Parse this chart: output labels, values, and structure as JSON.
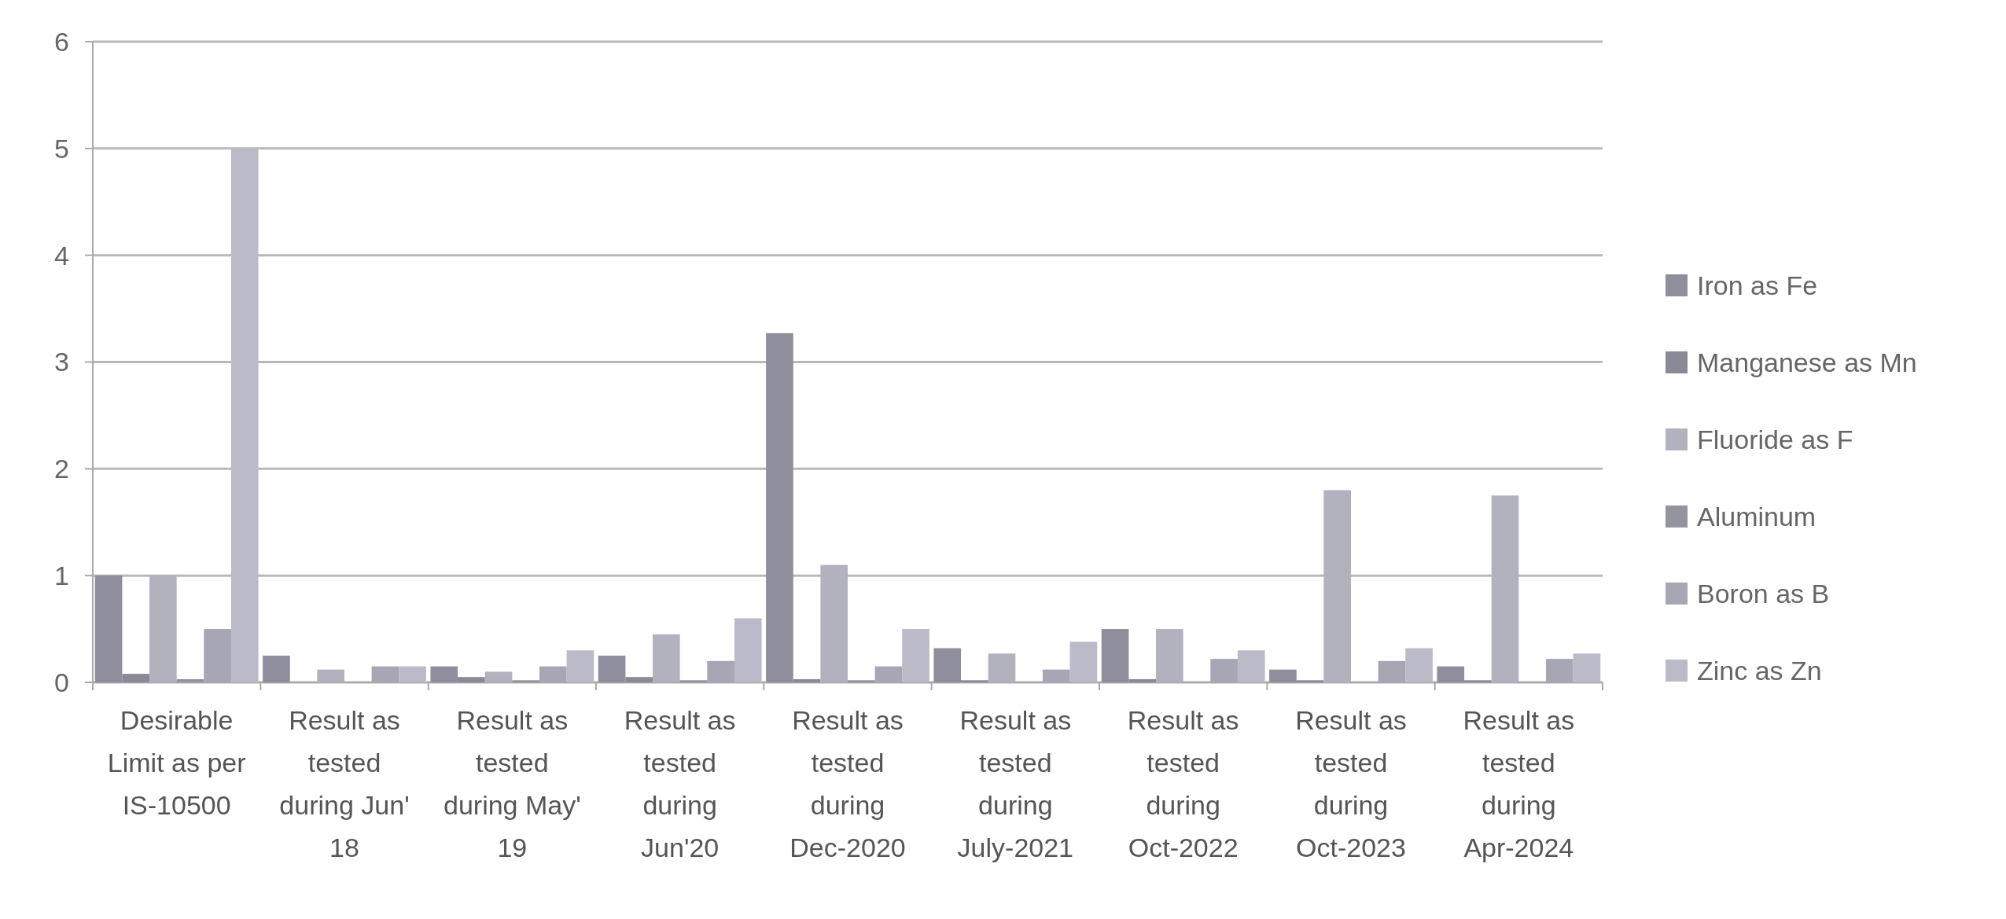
{
  "chart_data": {
    "type": "bar",
    "categories": [
      "Desirable Limit as per IS-10500",
      "Result as tested during Jun' 18",
      "Result as tested during May' 19",
      "Result as tested during Jun'20",
      "Result as tested during Dec-2020",
      "Result as tested during July-2021",
      "Result as tested during Oct-2022",
      "Result as tested during Oct-2023",
      "Result as tested during Apr-2024"
    ],
    "series": [
      {
        "name": "Iron as Fe",
        "color": "#8e8e9c",
        "values": [
          1,
          0.25,
          0.15,
          0.25,
          3.27,
          0.32,
          0.5,
          0.12,
          0.15
        ]
      },
      {
        "name": "Manganese as Mn",
        "color": "#8a8a96",
        "values": [
          0.08,
          null,
          0.05,
          0.05,
          0.03,
          0.02,
          0.03,
          0.02,
          0.02
        ]
      },
      {
        "name": "Fluoride as F",
        "color": "#b2b2be",
        "values": [
          1,
          0.12,
          0.1,
          0.45,
          1.1,
          0.27,
          0.5,
          1.8,
          1.75
        ]
      },
      {
        "name": "Aluminum",
        "color": "#94949e",
        "values": [
          0.03,
          null,
          0.02,
          0.02,
          0.02,
          null,
          null,
          null,
          null
        ]
      },
      {
        "name": "Boron as B",
        "color": "#a6a6b4",
        "values": [
          0.5,
          0.15,
          0.15,
          0.2,
          0.15,
          0.12,
          0.22,
          0.2,
          0.22
        ]
      },
      {
        "name": "Zinc as Zn",
        "color": "#babac8",
        "values": [
          5,
          0.15,
          0.3,
          0.6,
          0.5,
          0.38,
          0.3,
          0.32,
          0.27
        ]
      }
    ],
    "ylim": [
      0,
      6
    ],
    "yticks": [
      0,
      1,
      2,
      3,
      4,
      5,
      6
    ],
    "grid": "y",
    "legend": "right"
  }
}
